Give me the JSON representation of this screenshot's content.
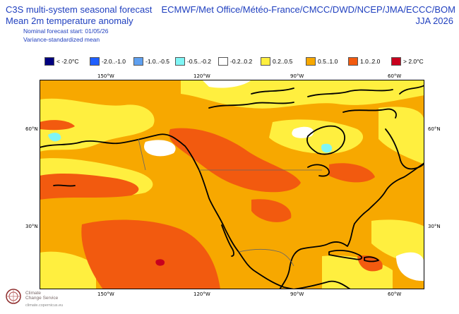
{
  "header": {
    "title_line1": "C3S multi-system seasonal forecast",
    "title_line2": "Mean 2m temperature anomaly",
    "subtitle_line1": "Nominal forecast start: 01/05/26",
    "subtitle_line2": "Variance-standardized mean",
    "centres": "ECMWF/Met Office/Météo-France/CMCC/DWD/NCEP/JMA/ECCC/BOM",
    "season": "JJA 2026"
  },
  "legend": [
    {
      "label": "< -2.0°C",
      "color": "#00007f"
    },
    {
      "label": "-2.0..-1.0",
      "color": "#1f5fff"
    },
    {
      "label": "-1.0..-0.5",
      "color": "#5fa0f0"
    },
    {
      "label": "-0.5..-0.2",
      "color": "#7ff5f5"
    },
    {
      "label": "-0.2..0.2",
      "color": "#ffffff"
    },
    {
      "label": "0.2..0.5",
      "color": "#ffef3f"
    },
    {
      "label": "0.5..1.0",
      "color": "#f7a800"
    },
    {
      "label": "1.0..2.0",
      "color": "#f25a0f"
    },
    {
      "label": "> 2.0°C",
      "color": "#c8001e"
    }
  ],
  "map": {
    "lon_labels": [
      "150°W",
      "120°W",
      "90°W",
      "60°W"
    ],
    "lat_labels": [
      "60°N",
      "30°N"
    ],
    "region": "North America",
    "dominant_category": "0.5..1.0"
  },
  "footer": {
    "logo_line1": "Climate",
    "logo_line2": "Change Service",
    "logo_url": "climate.copernicus.eu"
  }
}
